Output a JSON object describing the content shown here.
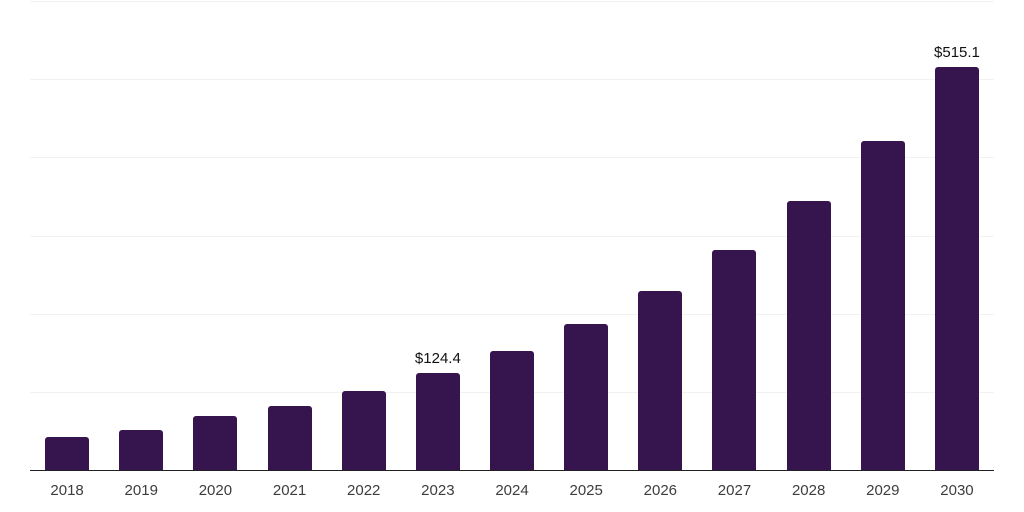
{
  "chart_data": {
    "type": "bar",
    "title": "",
    "xlabel": "",
    "ylabel": "",
    "categories": [
      "2018",
      "2019",
      "2020",
      "2021",
      "2022",
      "2023",
      "2024",
      "2025",
      "2026",
      "2027",
      "2028",
      "2029",
      "2030"
    ],
    "values": [
      41.6,
      50.7,
      68.5,
      81.4,
      100.6,
      124.4,
      152.4,
      186.3,
      228.7,
      280.9,
      343.8,
      420.5,
      515.1
    ],
    "data_labels": {
      "2023": "$124.4",
      "2030": "$515.1"
    },
    "ylim": [
      0,
      600
    ],
    "grid": "horizontal",
    "gridline_interval": 100,
    "legend_position": "none",
    "colors": {
      "bar": "#36154e",
      "gridline": "#f2f2f2",
      "axis_line": "#222222",
      "value_label": "#111111",
      "tick_label": "#3d3d3d",
      "background": "#ffffff"
    }
  }
}
